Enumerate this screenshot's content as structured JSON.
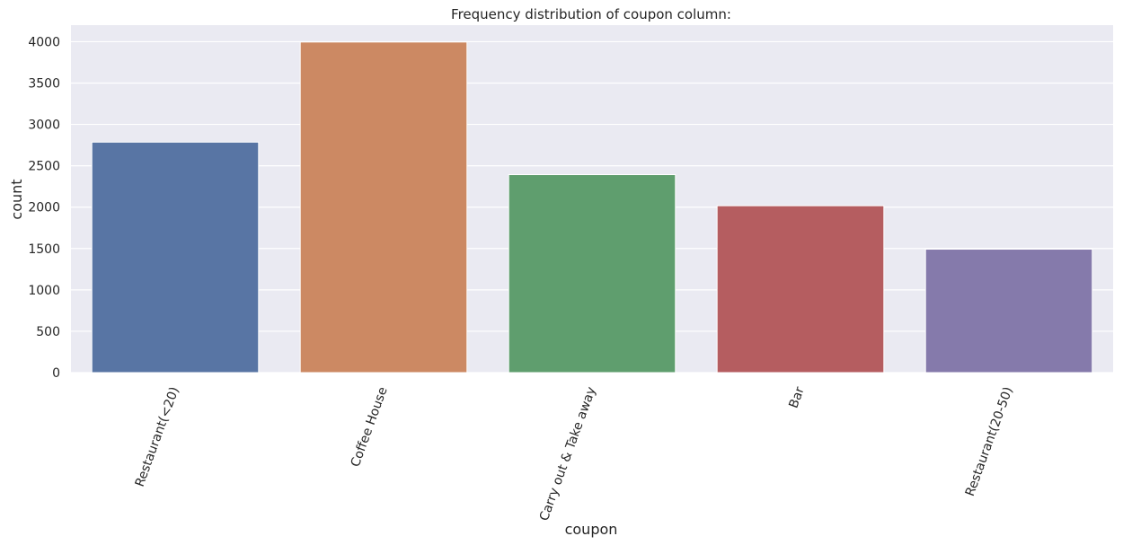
{
  "chart_data": {
    "type": "bar",
    "title": "Frequency distribution of coupon column:",
    "xlabel": "coupon",
    "ylabel": "count",
    "categories": [
      "Restaurant(<20)",
      "Coffee House",
      "Carry out & Take away",
      "Bar",
      "Restaurant(20-50)"
    ],
    "values": [
      2786,
      3996,
      2393,
      2017,
      1492
    ],
    "colors": [
      "#5875a4",
      "#cc8963",
      "#5f9e6e",
      "#b55d60",
      "#857aab"
    ],
    "ylim": [
      0,
      4200
    ],
    "yticks": [
      0,
      500,
      1000,
      1500,
      2000,
      2500,
      3000,
      3500,
      4000
    ],
    "ytick_labels": [
      "0",
      "500",
      "1000",
      "1500",
      "2000",
      "2500",
      "3000",
      "3500",
      "4000"
    ],
    "grid": true,
    "xtick_rotation": -70,
    "background": "#eaeaf2"
  }
}
